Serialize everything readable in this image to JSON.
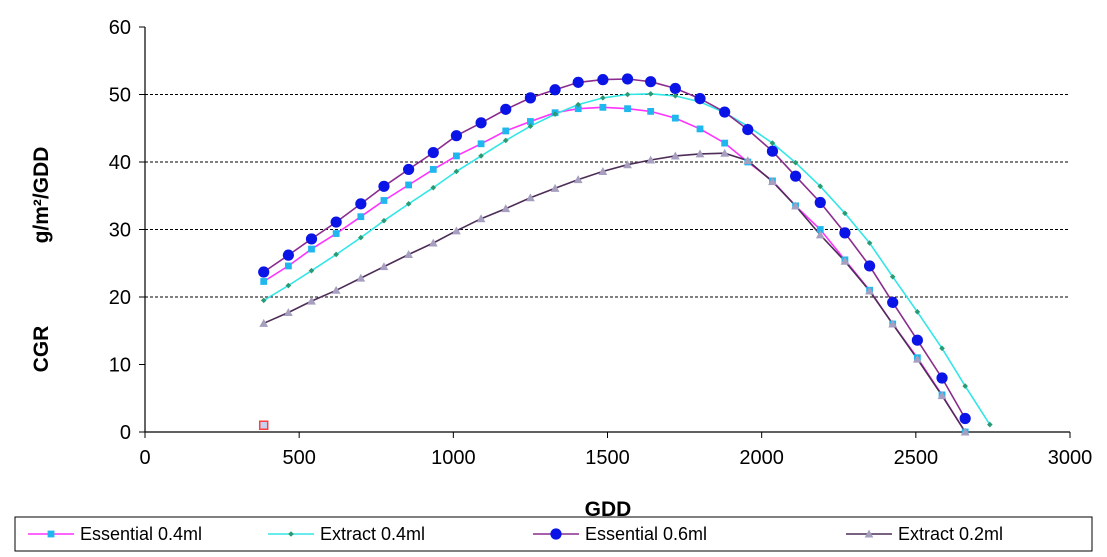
{
  "chart_data": {
    "type": "line",
    "xlabel": "GDD",
    "ylabel_lines": [
      "CGR",
      "g/m²/GDD"
    ],
    "xlim": [
      0,
      3000
    ],
    "ylim": [
      0,
      60
    ],
    "x_ticks": [
      0,
      500,
      1000,
      1500,
      2000,
      2500,
      3000
    ],
    "y_ticks": [
      0,
      10,
      20,
      30,
      40,
      50,
      60
    ],
    "grid": "horizontal dashed at 20, 30, 40, 50",
    "legend_position": "bottom",
    "stray_marker": {
      "x": 385,
      "y": 1,
      "color": "#ff4040"
    },
    "series": [
      {
        "name": "Essential 0.4ml",
        "color": "#ff33ff",
        "marker": "square",
        "marker_color": "#1fb7ee",
        "x": [
          385,
          465,
          540,
          620,
          700,
          775,
          855,
          935,
          1010,
          1090,
          1170,
          1250,
          1330,
          1405,
          1485,
          1565,
          1640,
          1720,
          1800,
          1880,
          1955,
          2035,
          2110,
          2190,
          2270,
          2350,
          2425,
          2505,
          2585,
          2660
        ],
        "y": [
          22.3,
          24.6,
          27.1,
          29.4,
          31.9,
          34.3,
          36.6,
          38.9,
          40.9,
          42.7,
          44.6,
          46.0,
          47.3,
          47.9,
          48.1,
          47.9,
          47.5,
          46.5,
          44.9,
          42.8,
          40.0,
          37.2,
          33.5,
          30.0,
          25.5,
          21.0,
          16.0,
          11.0,
          5.5,
          0.0
        ]
      },
      {
        "name": "Extract 0.4ml",
        "color": "#33e6e6",
        "marker": "diamond",
        "marker_color": "#2a9a73",
        "x": [
          385,
          465,
          540,
          620,
          700,
          775,
          855,
          935,
          1010,
          1090,
          1170,
          1250,
          1330,
          1405,
          1485,
          1565,
          1640,
          1720,
          1800,
          1880,
          1955,
          2035,
          2110,
          2190,
          2270,
          2350,
          2425,
          2505,
          2585,
          2660,
          2740
        ],
        "y": [
          19.5,
          21.7,
          23.9,
          26.3,
          28.8,
          31.3,
          33.8,
          36.2,
          38.6,
          40.9,
          43.2,
          45.3,
          47.1,
          48.5,
          49.5,
          50.0,
          50.1,
          49.8,
          48.9,
          47.3,
          45.3,
          42.8,
          39.9,
          36.4,
          32.4,
          28.0,
          23.0,
          17.8,
          12.4,
          6.8,
          1.1
        ]
      },
      {
        "name": "Essential 0.6ml",
        "color": "#8a2c8e",
        "marker": "circle",
        "marker_color": "#0a14e6",
        "x": [
          385,
          465,
          540,
          620,
          700,
          775,
          855,
          935,
          1010,
          1090,
          1170,
          1250,
          1330,
          1405,
          1485,
          1565,
          1640,
          1720,
          1800,
          1880,
          1955,
          2035,
          2110,
          2190,
          2270,
          2350,
          2425,
          2505,
          2585,
          2660
        ],
        "y": [
          23.7,
          26.2,
          28.6,
          31.1,
          33.8,
          36.4,
          38.9,
          41.4,
          43.9,
          45.8,
          47.8,
          49.5,
          50.7,
          51.8,
          52.2,
          52.3,
          51.9,
          50.9,
          49.4,
          47.4,
          44.8,
          41.6,
          37.9,
          34.0,
          29.5,
          24.6,
          19.2,
          13.6,
          8.0,
          2.0
        ]
      },
      {
        "name": "Extract 0.2ml",
        "color": "#4d2d58",
        "marker": "triangle",
        "marker_color": "#a79fc0",
        "x": [
          385,
          465,
          540,
          620,
          700,
          775,
          855,
          935,
          1010,
          1090,
          1170,
          1250,
          1330,
          1405,
          1485,
          1565,
          1640,
          1720,
          1800,
          1880,
          1955,
          2035,
          2110,
          2190,
          2270,
          2350,
          2425,
          2505,
          2585,
          2660
        ],
        "y": [
          16.1,
          17.7,
          19.4,
          21.0,
          22.8,
          24.5,
          26.3,
          28.0,
          29.8,
          31.6,
          33.1,
          34.7,
          36.1,
          37.4,
          38.6,
          39.6,
          40.3,
          40.9,
          41.2,
          41.3,
          40.2,
          37.1,
          33.5,
          29.2,
          25.3,
          20.9,
          16.0,
          10.8,
          5.4,
          0.0
        ]
      }
    ]
  }
}
